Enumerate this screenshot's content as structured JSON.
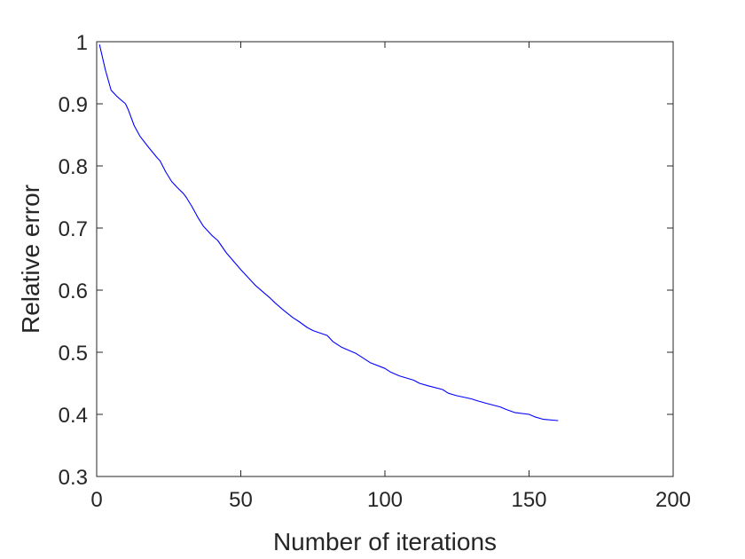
{
  "chart_data": {
    "type": "line",
    "title": "",
    "xlabel": "Number of iterations",
    "ylabel": "Relative error",
    "xlim": [
      0,
      200
    ],
    "ylim": [
      0.3,
      1.0
    ],
    "xticks": [
      0,
      50,
      100,
      150,
      200
    ],
    "yticks": [
      0.3,
      0.4,
      0.5,
      0.6,
      0.7,
      0.8,
      0.9,
      1.0
    ],
    "xtick_labels": [
      "0",
      "50",
      "100",
      "150",
      "200"
    ],
    "ytick_labels": [
      "0.3",
      "0.4",
      "0.5",
      "0.6",
      "0.7",
      "0.8",
      "0.9",
      "1"
    ],
    "grid": false,
    "legend": null,
    "series": [
      {
        "color": "#0000ff",
        "x": [
          1,
          3,
          5,
          7,
          10,
          11,
          13,
          15,
          18,
          21,
          22,
          24,
          26,
          28,
          30,
          31,
          33,
          35,
          37,
          40,
          42,
          45,
          50,
          55,
          60,
          62,
          65,
          68,
          70,
          73,
          75,
          80,
          82,
          85,
          90,
          92,
          95,
          100,
          102,
          105,
          110,
          112,
          115,
          120,
          122,
          125,
          130,
          132,
          135,
          140,
          142,
          145,
          150,
          152,
          155,
          160
        ],
        "y": [
          0.995,
          0.955,
          0.922,
          0.912,
          0.9,
          0.89,
          0.865,
          0.848,
          0.83,
          0.813,
          0.808,
          0.79,
          0.775,
          0.765,
          0.756,
          0.75,
          0.735,
          0.718,
          0.703,
          0.688,
          0.68,
          0.66,
          0.633,
          0.608,
          0.588,
          0.579,
          0.567,
          0.556,
          0.55,
          0.54,
          0.535,
          0.527,
          0.517,
          0.508,
          0.498,
          0.492,
          0.483,
          0.474,
          0.468,
          0.462,
          0.455,
          0.45,
          0.446,
          0.44,
          0.434,
          0.43,
          0.425,
          0.422,
          0.418,
          0.412,
          0.408,
          0.403,
          0.4,
          0.396,
          0.392,
          0.39
        ]
      }
    ]
  }
}
